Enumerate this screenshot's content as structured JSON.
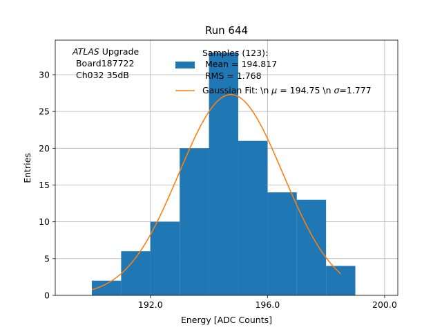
{
  "chart_data": {
    "type": "bar",
    "title": "Run 644",
    "xlabel": "Energy [ADC Counts]",
    "ylabel": "Entries",
    "xlim": [
      188.75,
      200.45
    ],
    "ylim": [
      0,
      34.7
    ],
    "grid": true,
    "xticks": [
      192.0,
      196.0,
      200.0
    ],
    "xtick_labels": [
      "192.0",
      "196.0",
      "200.0"
    ],
    "yticks": [
      0,
      5,
      10,
      15,
      20,
      25,
      30
    ],
    "ytick_labels": [
      "0",
      "5",
      "10",
      "15",
      "20",
      "25",
      "30"
    ],
    "bin_edges": [
      190.0,
      191.0,
      192.0,
      193.0,
      194.0,
      195.0,
      196.0,
      197.0,
      198.0,
      199.0
    ],
    "values": [
      2,
      6,
      10,
      20,
      33,
      21,
      14,
      13,
      4
    ],
    "bar_color": "#1f77b4",
    "fit": {
      "name": "Gaussian Fit",
      "mu": 194.75,
      "sigma": 1.777,
      "amplitude": 27.3,
      "x_range": [
        190.0,
        198.5
      ],
      "color": "#ff7f0e"
    },
    "annotation": {
      "experiment": "ATLAS",
      "suffix": " Upgrade",
      "board": "Board187722",
      "channel": "Ch032 35dB"
    },
    "legend": {
      "position": "top-right",
      "hist_line1": "Samples (123):",
      "hist_line2": " Mean = 194.817",
      "hist_line3": " RMS = 1.768",
      "fit_text_a": "Gaussian Fit: \\n ",
      "fit_mu_symbol": "μ",
      "fit_text_b": " = 194.75 \\n ",
      "fit_sigma_symbol": "σ",
      "fit_text_c": "=1.777"
    }
  }
}
